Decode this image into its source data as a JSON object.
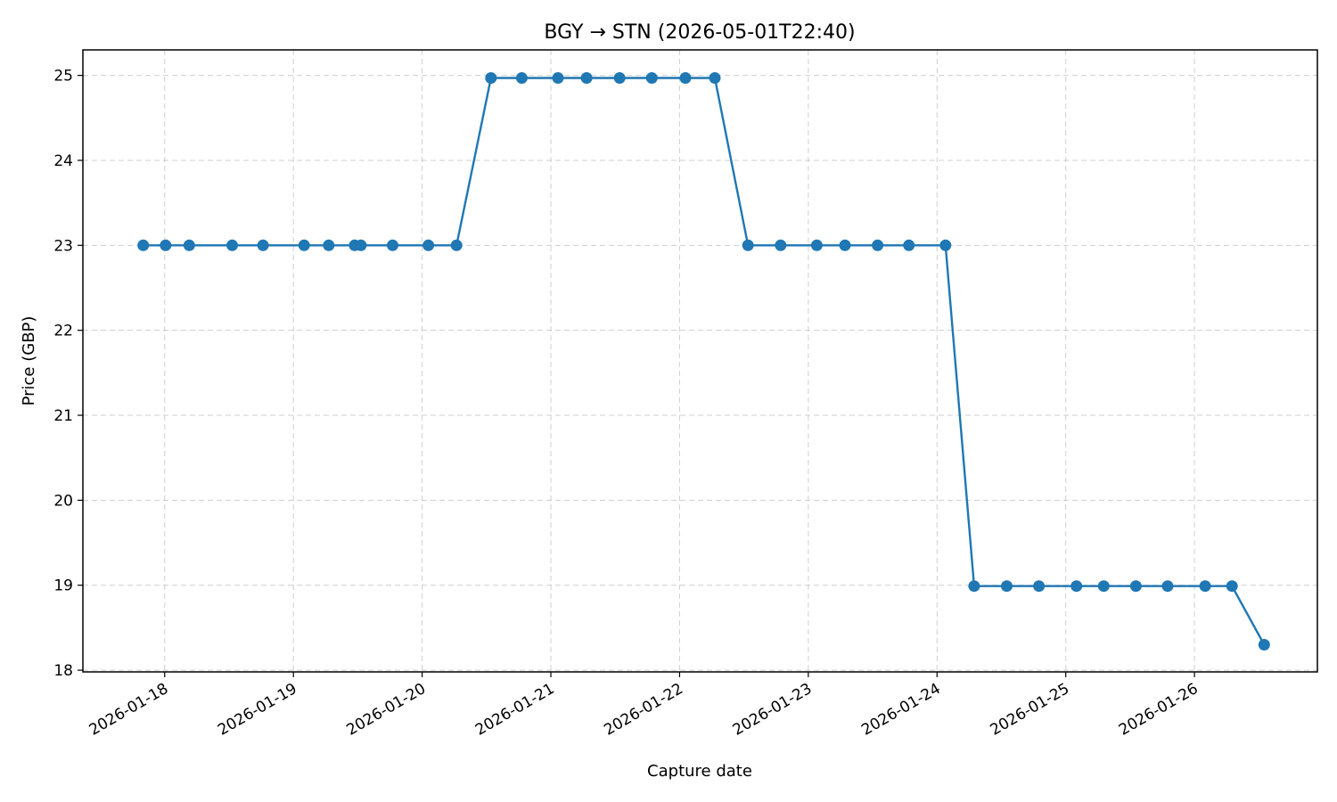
{
  "chart_data": {
    "type": "line",
    "title": "BGY → STN (2026-05-01T22:40)",
    "xlabel": "Capture date",
    "ylabel": "Price (GBP)",
    "x_ticks": [
      "2026-01-18",
      "2026-01-19",
      "2026-01-20",
      "2026-01-21",
      "2026-01-22",
      "2026-01-23",
      "2026-01-24",
      "2026-01-25",
      "2026-01-26"
    ],
    "y_ticks": [
      "18",
      "19",
      "20",
      "21",
      "22",
      "23",
      "24",
      "25"
    ],
    "xlim": [
      "2026-01-17T08:45",
      "2026-01-26T22:55"
    ],
    "ylim": [
      17.98,
      25.3
    ],
    "grid": true,
    "line_color": "#1f77b4",
    "series": [
      {
        "x": [
          "2026-01-17T20:00",
          "2026-01-18T00:10",
          "2026-01-18T04:35",
          "2026-01-18T12:35",
          "2026-01-18T18:20",
          "2026-01-19T02:00",
          "2026-01-19T06:35",
          "2026-01-19T11:25",
          "2026-01-19T12:35",
          "2026-01-19T18:30",
          "2026-01-20T01:10",
          "2026-01-20T06:25",
          "2026-01-20T12:50",
          "2026-01-20T18:35",
          "2026-01-21T01:20",
          "2026-01-21T06:40",
          "2026-01-21T12:50",
          "2026-01-21T18:50",
          "2026-01-22T01:05",
          "2026-01-22T06:35",
          "2026-01-22T12:45",
          "2026-01-22T18:50",
          "2026-01-23T01:35",
          "2026-01-23T06:50",
          "2026-01-23T12:55",
          "2026-01-23T18:45",
          "2026-01-24T01:35",
          "2026-01-24T06:55",
          "2026-01-24T13:00",
          "2026-01-24T19:00",
          "2026-01-25T02:00",
          "2026-01-25T07:05",
          "2026-01-25T13:05",
          "2026-01-25T19:00",
          "2026-01-26T02:00",
          "2026-01-26T07:00",
          "2026-01-26T13:00"
        ],
        "y": [
          23,
          23,
          23,
          23,
          23,
          23,
          23,
          23,
          23,
          23,
          23,
          23,
          24.97,
          24.97,
          24.97,
          24.97,
          24.97,
          24.97,
          24.97,
          24.97,
          23,
          23,
          23,
          23,
          23,
          23,
          23,
          18.99,
          18.99,
          18.99,
          18.99,
          18.99,
          18.99,
          18.99,
          18.99,
          18.99,
          18.3
        ]
      }
    ]
  }
}
